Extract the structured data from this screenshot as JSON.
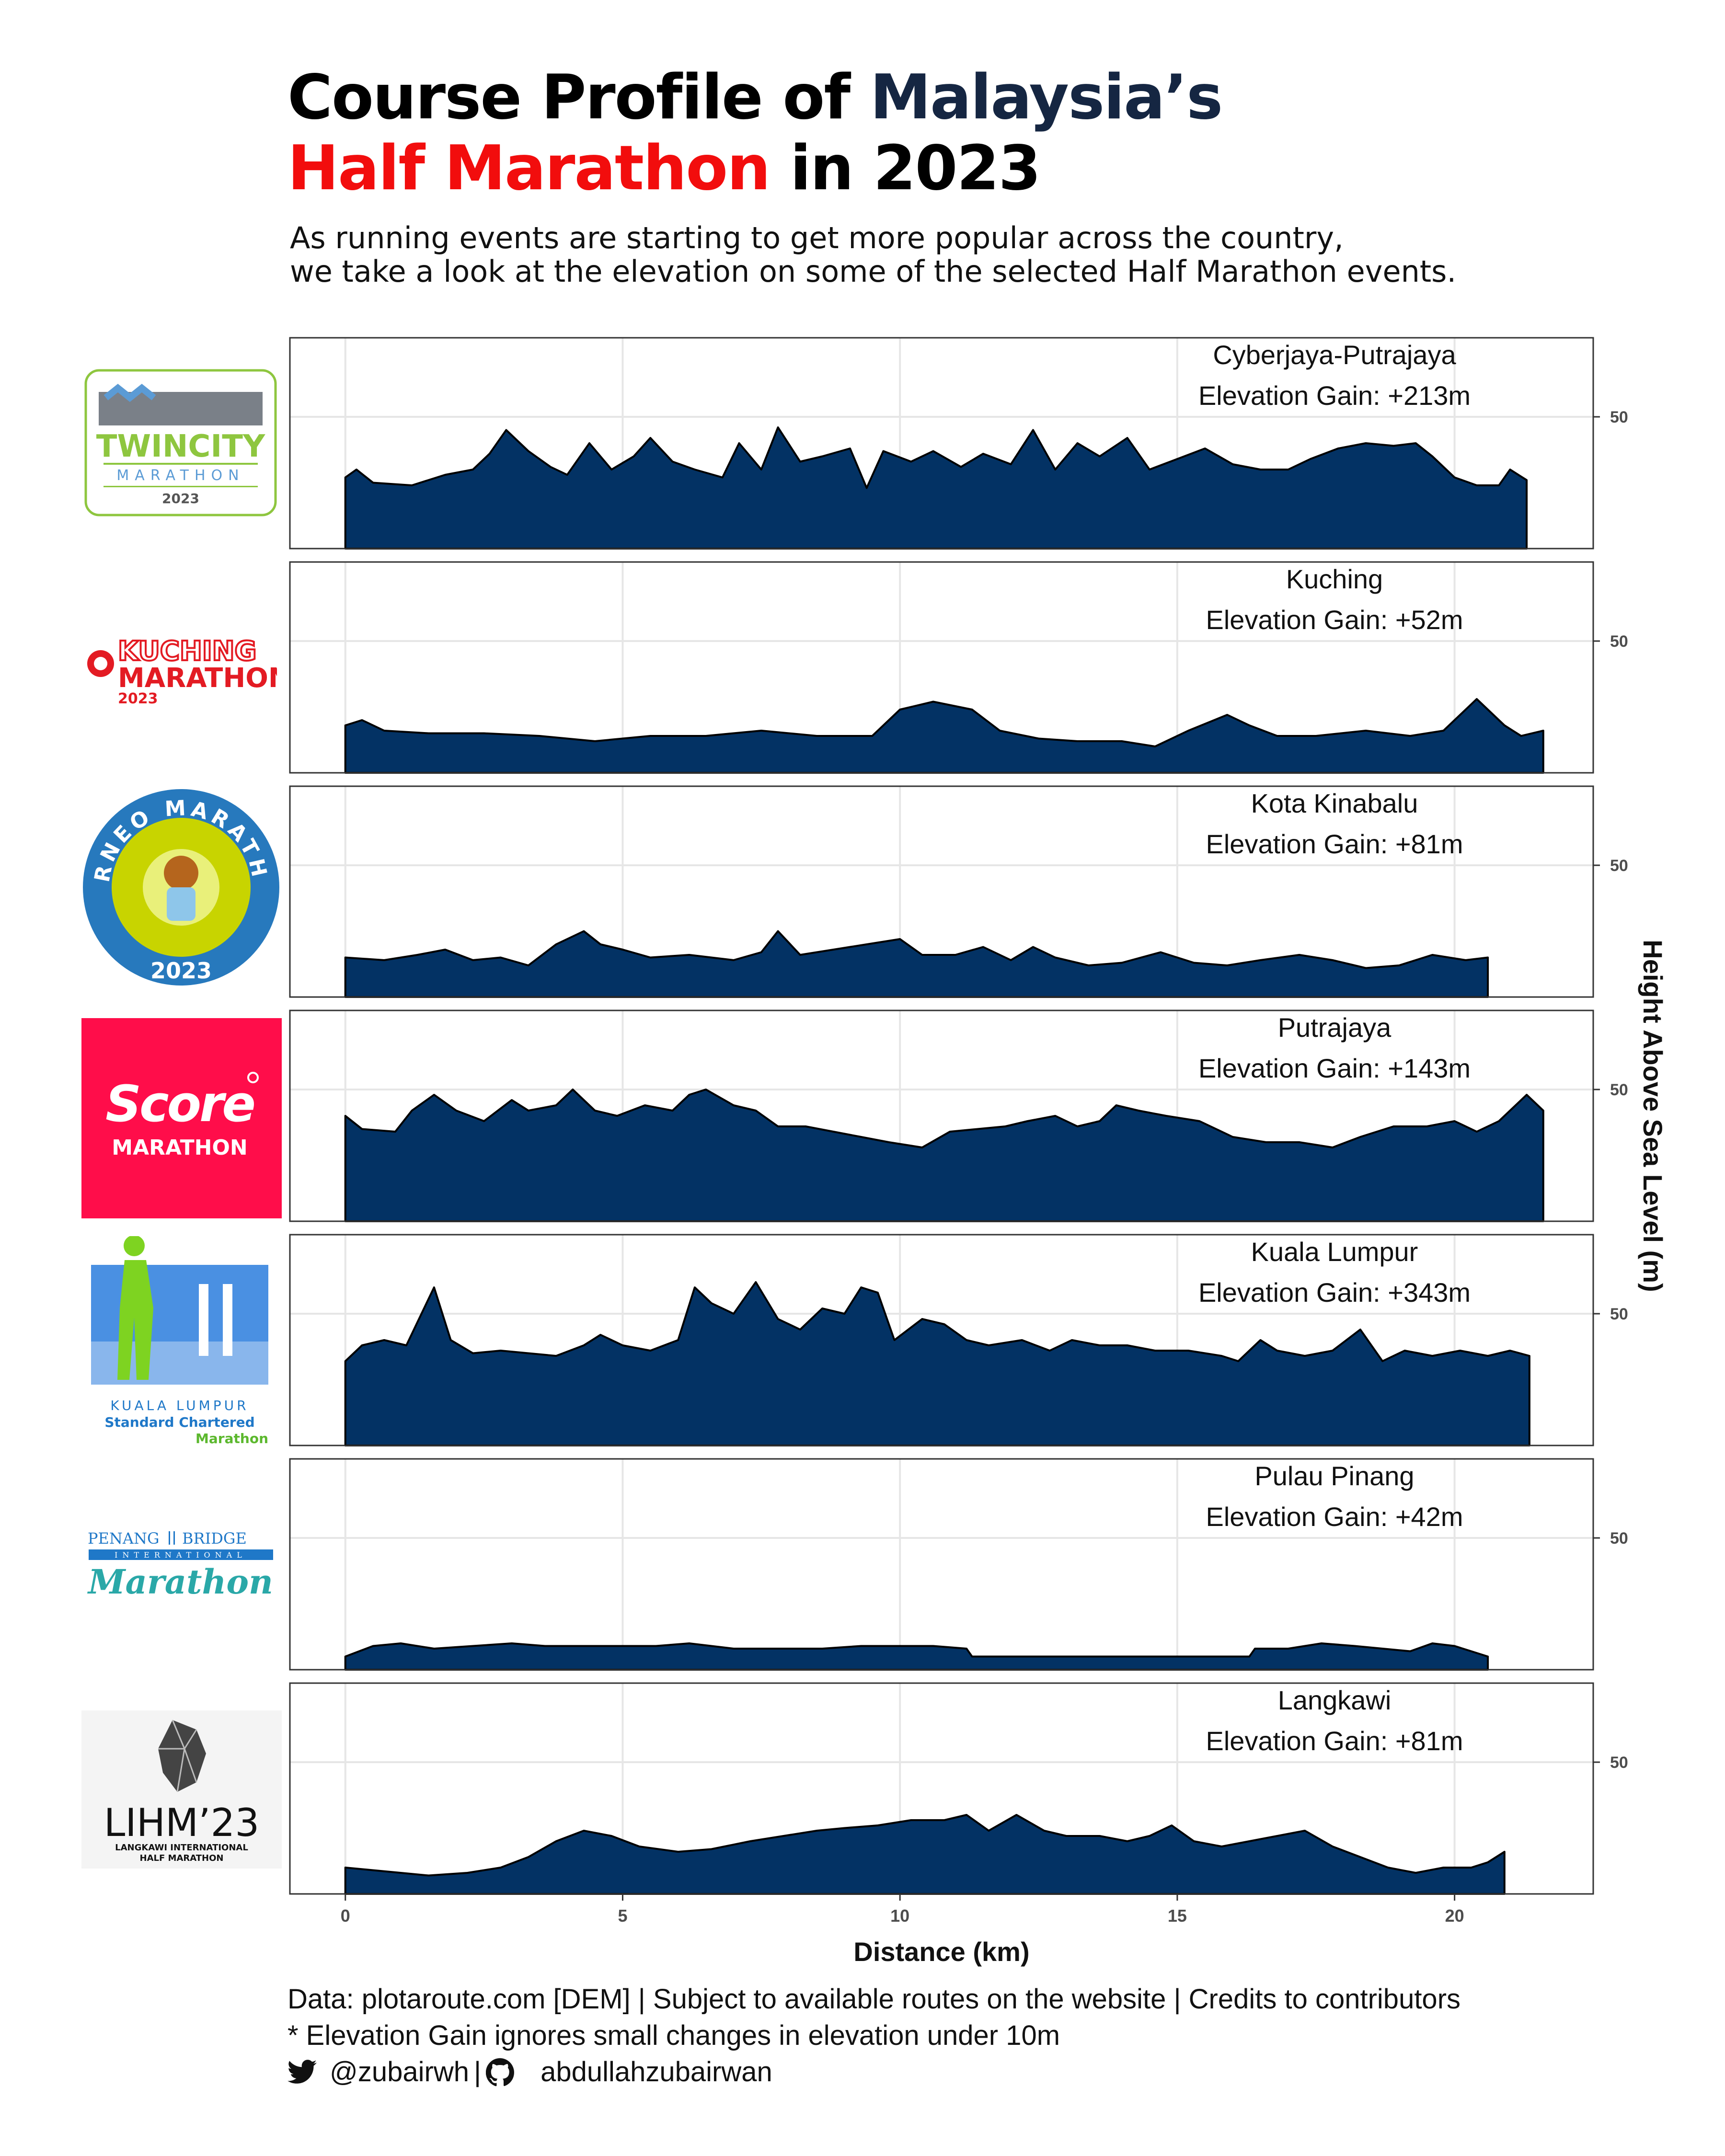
{
  "title": {
    "part1": "Course Profile of ",
    "part2": "Malaysia’s",
    "part3": "Half Marathon",
    "part4": " in 2023"
  },
  "subtitle": {
    "line1": "As running events are starting to get more popular across the country,",
    "line2": "we take a look at the elevation on some of the selected Half Marathon events."
  },
  "colors": {
    "area_fill": "#033264",
    "title_navy": "#152642",
    "title_red": "#f20d0d",
    "grid": "#e6e6e6"
  },
  "chart_data": {
    "type": "area",
    "xlabel": "Distance (km)",
    "ylabel": "Height Above Sea Level (m)",
    "x_ticks": [
      0,
      5,
      10,
      15,
      20
    ],
    "y_ticks": [
      50
    ],
    "xlim": [
      -1,
      22.5
    ],
    "ylim": [
      0,
      80
    ],
    "grid": true,
    "label_prefix": "Elevation Gain: ",
    "panels": [
      {
        "event": "Cyberjaya-Putrajaya",
        "gain": "+213m",
        "distance_km": 21.3,
        "points": [
          [
            0,
            27
          ],
          [
            0.2,
            30
          ],
          [
            0.5,
            25
          ],
          [
            1.2,
            24
          ],
          [
            1.8,
            28
          ],
          [
            2.3,
            30
          ],
          [
            2.6,
            36
          ],
          [
            2.9,
            45
          ],
          [
            3.3,
            37
          ],
          [
            3.7,
            31
          ],
          [
            4.0,
            28
          ],
          [
            4.4,
            40
          ],
          [
            4.8,
            30
          ],
          [
            5.2,
            35
          ],
          [
            5.5,
            42
          ],
          [
            5.9,
            33
          ],
          [
            6.3,
            30
          ],
          [
            6.8,
            27
          ],
          [
            7.1,
            40
          ],
          [
            7.5,
            30
          ],
          [
            7.8,
            46
          ],
          [
            8.2,
            33
          ],
          [
            8.6,
            35
          ],
          [
            9.1,
            38
          ],
          [
            9.4,
            23
          ],
          [
            9.7,
            37
          ],
          [
            10.2,
            33
          ],
          [
            10.6,
            37
          ],
          [
            11.1,
            31
          ],
          [
            11.5,
            36
          ],
          [
            12.0,
            32
          ],
          [
            12.4,
            45
          ],
          [
            12.8,
            30
          ],
          [
            13.2,
            40
          ],
          [
            13.6,
            35
          ],
          [
            14.1,
            42
          ],
          [
            14.5,
            30
          ],
          [
            15.0,
            34
          ],
          [
            15.5,
            38
          ],
          [
            16.0,
            32
          ],
          [
            16.5,
            30
          ],
          [
            17.0,
            30
          ],
          [
            17.4,
            34
          ],
          [
            17.9,
            38
          ],
          [
            18.4,
            40
          ],
          [
            18.9,
            39
          ],
          [
            19.3,
            40
          ],
          [
            19.6,
            35
          ],
          [
            20.0,
            27
          ],
          [
            20.4,
            24
          ],
          [
            20.8,
            24
          ],
          [
            21.0,
            30
          ],
          [
            21.3,
            26
          ]
        ]
      },
      {
        "event": "Kuching",
        "gain": "+52m",
        "distance_km": 21.6,
        "points": [
          [
            0,
            18
          ],
          [
            0.3,
            20
          ],
          [
            0.7,
            16
          ],
          [
            1.5,
            15
          ],
          [
            2.5,
            15
          ],
          [
            3.5,
            14
          ],
          [
            4.5,
            12
          ],
          [
            5.5,
            14
          ],
          [
            6.5,
            14
          ],
          [
            7.5,
            16
          ],
          [
            8.5,
            14
          ],
          [
            9.5,
            14
          ],
          [
            10.0,
            24
          ],
          [
            10.6,
            27
          ],
          [
            11.3,
            24
          ],
          [
            11.8,
            16
          ],
          [
            12.5,
            13
          ],
          [
            13.2,
            12
          ],
          [
            14.0,
            12
          ],
          [
            14.6,
            10
          ],
          [
            15.2,
            16
          ],
          [
            15.9,
            22
          ],
          [
            16.3,
            18
          ],
          [
            16.8,
            14
          ],
          [
            17.5,
            14
          ],
          [
            18.4,
            16
          ],
          [
            19.2,
            14
          ],
          [
            19.8,
            16
          ],
          [
            20.4,
            28
          ],
          [
            20.9,
            18
          ],
          [
            21.2,
            14
          ],
          [
            21.6,
            16
          ]
        ]
      },
      {
        "event": "Kota Kinabalu",
        "gain": "+81m",
        "distance_km": 20.6,
        "points": [
          [
            0,
            15
          ],
          [
            0.7,
            14
          ],
          [
            1.3,
            16
          ],
          [
            1.8,
            18
          ],
          [
            2.3,
            14
          ],
          [
            2.8,
            15
          ],
          [
            3.3,
            12
          ],
          [
            3.8,
            20
          ],
          [
            4.3,
            25
          ],
          [
            4.6,
            20
          ],
          [
            5.0,
            18
          ],
          [
            5.5,
            15
          ],
          [
            6.2,
            16
          ],
          [
            7.0,
            14
          ],
          [
            7.5,
            17
          ],
          [
            7.8,
            25
          ],
          [
            8.2,
            16
          ],
          [
            8.8,
            18
          ],
          [
            9.4,
            20
          ],
          [
            10.0,
            22
          ],
          [
            10.4,
            16
          ],
          [
            11.0,
            16
          ],
          [
            11.5,
            19
          ],
          [
            12.0,
            14
          ],
          [
            12.4,
            19
          ],
          [
            12.8,
            15
          ],
          [
            13.4,
            12
          ],
          [
            14.0,
            13
          ],
          [
            14.7,
            17
          ],
          [
            15.3,
            13
          ],
          [
            15.9,
            12
          ],
          [
            16.5,
            14
          ],
          [
            17.2,
            16
          ],
          [
            17.8,
            14
          ],
          [
            18.4,
            11
          ],
          [
            19.0,
            12
          ],
          [
            19.6,
            16
          ],
          [
            20.2,
            14
          ],
          [
            20.6,
            15
          ]
        ]
      },
      {
        "event": "Putrajaya",
        "gain": "+143m",
        "distance_km": 21.6,
        "points": [
          [
            0,
            40
          ],
          [
            0.3,
            35
          ],
          [
            0.9,
            34
          ],
          [
            1.2,
            42
          ],
          [
            1.6,
            48
          ],
          [
            2.0,
            42
          ],
          [
            2.5,
            38
          ],
          [
            3.0,
            46
          ],
          [
            3.3,
            42
          ],
          [
            3.8,
            44
          ],
          [
            4.1,
            50
          ],
          [
            4.5,
            42
          ],
          [
            4.9,
            40
          ],
          [
            5.4,
            44
          ],
          [
            5.9,
            42
          ],
          [
            6.2,
            48
          ],
          [
            6.5,
            50
          ],
          [
            7.0,
            44
          ],
          [
            7.4,
            42
          ],
          [
            7.8,
            36
          ],
          [
            8.3,
            36
          ],
          [
            8.8,
            34
          ],
          [
            9.3,
            32
          ],
          [
            9.8,
            30
          ],
          [
            10.4,
            28
          ],
          [
            10.9,
            34
          ],
          [
            11.4,
            35
          ],
          [
            11.9,
            36
          ],
          [
            12.3,
            38
          ],
          [
            12.8,
            40
          ],
          [
            13.2,
            36
          ],
          [
            13.6,
            38
          ],
          [
            13.9,
            44
          ],
          [
            14.3,
            42
          ],
          [
            14.8,
            40
          ],
          [
            15.4,
            38
          ],
          [
            16.0,
            32
          ],
          [
            16.6,
            30
          ],
          [
            17.2,
            30
          ],
          [
            17.8,
            28
          ],
          [
            18.3,
            32
          ],
          [
            18.9,
            36
          ],
          [
            19.5,
            36
          ],
          [
            20.0,
            38
          ],
          [
            20.4,
            34
          ],
          [
            20.8,
            38
          ],
          [
            21.3,
            48
          ],
          [
            21.6,
            42
          ]
        ]
      },
      {
        "event": "Kuala Lumpur",
        "gain": "+343m",
        "distance_km": 21.35,
        "points": [
          [
            0,
            32
          ],
          [
            0.3,
            38
          ],
          [
            0.7,
            40
          ],
          [
            1.1,
            38
          ],
          [
            1.6,
            60
          ],
          [
            1.9,
            40
          ],
          [
            2.3,
            35
          ],
          [
            2.8,
            36
          ],
          [
            3.3,
            35
          ],
          [
            3.8,
            34
          ],
          [
            4.3,
            38
          ],
          [
            4.6,
            42
          ],
          [
            5.0,
            38
          ],
          [
            5.5,
            36
          ],
          [
            6.0,
            40
          ],
          [
            6.3,
            60
          ],
          [
            6.6,
            54
          ],
          [
            7.0,
            50
          ],
          [
            7.4,
            62
          ],
          [
            7.8,
            48
          ],
          [
            8.2,
            44
          ],
          [
            8.6,
            52
          ],
          [
            9.0,
            50
          ],
          [
            9.3,
            60
          ],
          [
            9.6,
            58
          ],
          [
            9.9,
            40
          ],
          [
            10.4,
            48
          ],
          [
            10.8,
            46
          ],
          [
            11.2,
            40
          ],
          [
            11.6,
            38
          ],
          [
            12.2,
            40
          ],
          [
            12.7,
            36
          ],
          [
            13.1,
            40
          ],
          [
            13.6,
            38
          ],
          [
            14.1,
            38
          ],
          [
            14.6,
            36
          ],
          [
            15.2,
            36
          ],
          [
            15.8,
            34
          ],
          [
            16.1,
            32
          ],
          [
            16.5,
            40
          ],
          [
            16.8,
            36
          ],
          [
            17.3,
            34
          ],
          [
            17.8,
            36
          ],
          [
            18.3,
            44
          ],
          [
            18.7,
            32
          ],
          [
            19.1,
            36
          ],
          [
            19.6,
            34
          ],
          [
            20.1,
            36
          ],
          [
            20.6,
            34
          ],
          [
            21.0,
            36
          ],
          [
            21.35,
            34
          ]
        ]
      },
      {
        "event": "Pulau Pinang",
        "gain": "+42m",
        "distance_km": 20.6,
        "points": [
          [
            0,
            5
          ],
          [
            0.5,
            9
          ],
          [
            1.0,
            10
          ],
          [
            1.6,
            8
          ],
          [
            2.3,
            9
          ],
          [
            3.0,
            10
          ],
          [
            3.6,
            9
          ],
          [
            4.3,
            9
          ],
          [
            5.0,
            9
          ],
          [
            5.6,
            9
          ],
          [
            6.2,
            10
          ],
          [
            7.0,
            8
          ],
          [
            7.8,
            8
          ],
          [
            8.6,
            8
          ],
          [
            9.3,
            9
          ],
          [
            10.0,
            9
          ],
          [
            10.6,
            9
          ],
          [
            11.2,
            8
          ],
          [
            11.3,
            5
          ],
          [
            13.0,
            5
          ],
          [
            15.0,
            5
          ],
          [
            16.3,
            5
          ],
          [
            16.4,
            8
          ],
          [
            17.0,
            8
          ],
          [
            17.6,
            10
          ],
          [
            18.2,
            9
          ],
          [
            18.7,
            8
          ],
          [
            19.2,
            7
          ],
          [
            19.6,
            10
          ],
          [
            20.0,
            9
          ],
          [
            20.3,
            7
          ],
          [
            20.6,
            5
          ]
        ]
      },
      {
        "event": "Langkawi",
        "gain": "+81m",
        "distance_km": 20.9,
        "points": [
          [
            0,
            10
          ],
          [
            0.5,
            9
          ],
          [
            1.0,
            8
          ],
          [
            1.5,
            7
          ],
          [
            2.2,
            8
          ],
          [
            2.8,
            10
          ],
          [
            3.3,
            14
          ],
          [
            3.8,
            20
          ],
          [
            4.3,
            24
          ],
          [
            4.8,
            22
          ],
          [
            5.3,
            18
          ],
          [
            6.0,
            16
          ],
          [
            6.6,
            17
          ],
          [
            7.3,
            20
          ],
          [
            7.9,
            22
          ],
          [
            8.5,
            24
          ],
          [
            9.0,
            25
          ],
          [
            9.6,
            26
          ],
          [
            10.2,
            28
          ],
          [
            10.8,
            28
          ],
          [
            11.2,
            30
          ],
          [
            11.6,
            24
          ],
          [
            12.1,
            30
          ],
          [
            12.6,
            24
          ],
          [
            13.0,
            22
          ],
          [
            13.6,
            22
          ],
          [
            14.1,
            20
          ],
          [
            14.5,
            22
          ],
          [
            14.9,
            26
          ],
          [
            15.3,
            20
          ],
          [
            15.8,
            18
          ],
          [
            16.3,
            20
          ],
          [
            16.8,
            22
          ],
          [
            17.3,
            24
          ],
          [
            17.8,
            18
          ],
          [
            18.3,
            14
          ],
          [
            18.8,
            10
          ],
          [
            19.3,
            8
          ],
          [
            19.8,
            10
          ],
          [
            20.3,
            10
          ],
          [
            20.6,
            12
          ],
          [
            20.9,
            16
          ]
        ]
      }
    ]
  },
  "logos": [
    {
      "name": "TWINCITY",
      "sub": "MARATHON",
      "year": "2023"
    },
    {
      "name": "KUCHING",
      "sub": "MARATHON",
      "year": "2023"
    },
    {
      "name": "BORNEO MARATHON",
      "year": "2023"
    },
    {
      "name": "Score",
      "sub": "MARATHON"
    },
    {
      "name": "KUALA LUMPUR",
      "sub": "Standard Chartered",
      "sub2": "Marathon"
    },
    {
      "name": "PENANG",
      "name2": "BRIDGE",
      "sub": "INTERNATIONAL",
      "sub2": "Marathon"
    },
    {
      "name": "LIHM’23",
      "sub": "LANGKAWI INTERNATIONAL",
      "sub2": "HALF MARATHON"
    }
  ],
  "footer": {
    "line1": "Data: plotaroute.com [DEM] |  Subject to available routes on the website |  Credits to contributors",
    "line2": "* Elevation Gain ignores small changes in elevation under 10m",
    "twitter": "@zubairwh",
    "github": "abdullahzubairwan"
  }
}
